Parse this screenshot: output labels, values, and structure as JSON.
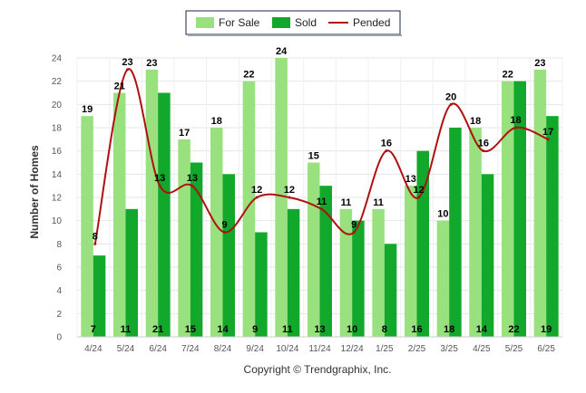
{
  "chart_data": {
    "type": "bar",
    "title": "",
    "ylabel": "Number of Homes",
    "xlabel": "",
    "ylim": [
      0,
      24
    ],
    "yticks": [
      0,
      2,
      4,
      6,
      8,
      10,
      12,
      14,
      16,
      18,
      20,
      22,
      24
    ],
    "grid": true,
    "legend_position": "top-center",
    "categories": [
      "4/24",
      "5/24",
      "6/24",
      "7/24",
      "8/24",
      "9/24",
      "10/24",
      "11/24",
      "12/24",
      "1/25",
      "2/25",
      "3/25",
      "4/25",
      "5/25",
      "6/25"
    ],
    "series": [
      {
        "name": "For Sale",
        "type": "bar",
        "color": "#99e07f",
        "values": [
          19,
          21,
          23,
          17,
          18,
          22,
          24,
          15,
          11,
          11,
          13,
          10,
          18,
          22,
          23
        ]
      },
      {
        "name": "Sold",
        "type": "bar",
        "color": "#12a82b",
        "values": [
          7,
          11,
          21,
          15,
          14,
          9,
          11,
          13,
          10,
          8,
          16,
          18,
          14,
          22,
          19
        ]
      },
      {
        "name": "Pended",
        "type": "line",
        "color": "#b01010",
        "values": [
          8,
          23,
          13,
          13,
          9,
          12,
          12,
          11,
          9,
          16,
          12,
          20,
          16,
          18,
          17
        ]
      }
    ]
  },
  "footer": {
    "copyright": "Copyright © Trendgraphix, Inc."
  }
}
